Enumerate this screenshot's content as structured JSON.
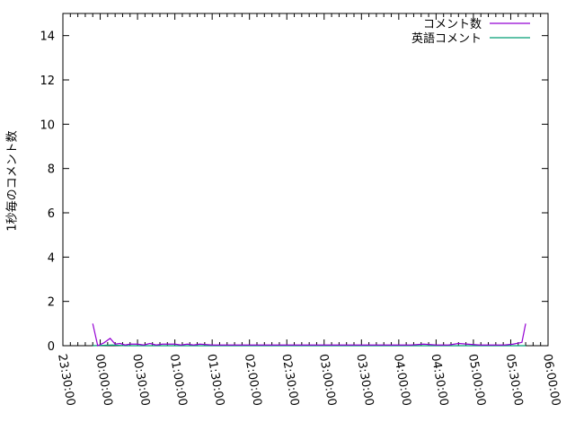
{
  "chart_data": {
    "type": "line",
    "title": "",
    "xlabel": "",
    "ylabel": "1秒毎のコメント数",
    "xlim": [
      "23:30:00",
      "06:00:00"
    ],
    "ylim": [
      0,
      15
    ],
    "x_ticks": [
      "23:30:00",
      "00:00:00",
      "00:30:00",
      "01:00:00",
      "01:30:00",
      "02:00:00",
      "02:30:00",
      "03:00:00",
      "03:30:00",
      "04:00:00",
      "04:30:00",
      "05:00:00",
      "05:30:00",
      "06:00:00"
    ],
    "y_ticks": [
      0,
      2,
      4,
      6,
      8,
      10,
      12,
      14
    ],
    "grid": false,
    "legend_position": "top-right",
    "series": [
      {
        "name": "コメント数",
        "color": "#9400d3",
        "points": [
          [
            "23:54",
            1.0
          ],
          [
            "23:58",
            0
          ],
          [
            "00:03",
            0.13
          ],
          [
            "00:08",
            0.33
          ],
          [
            "00:12",
            0.07
          ],
          [
            "00:16",
            0.1
          ],
          [
            "00:20",
            0.03
          ],
          [
            "00:24",
            0.07
          ],
          [
            "00:30",
            0.07
          ],
          [
            "00:35",
            0.03
          ],
          [
            "00:40",
            0.1
          ],
          [
            "00:45",
            0.03
          ],
          [
            "00:50",
            0.07
          ],
          [
            "00:55",
            0.07
          ],
          [
            "01:00",
            0.07
          ],
          [
            "01:05",
            0.03
          ],
          [
            "01:10",
            0.07
          ],
          [
            "01:15",
            0.03
          ],
          [
            "01:20",
            0.07
          ],
          [
            "01:30",
            0.03
          ],
          [
            "01:40",
            0.03
          ],
          [
            "01:50",
            0.03
          ],
          [
            "02:00",
            0.03
          ],
          [
            "02:10",
            0.03
          ],
          [
            "02:20",
            0.03
          ],
          [
            "02:30",
            0.03
          ],
          [
            "02:40",
            0.03
          ],
          [
            "02:50",
            0.03
          ],
          [
            "03:00",
            0.03
          ],
          [
            "03:10",
            0.03
          ],
          [
            "03:20",
            0.03
          ],
          [
            "03:30",
            0.03
          ],
          [
            "03:40",
            0.03
          ],
          [
            "03:50",
            0.03
          ],
          [
            "04:00",
            0.03
          ],
          [
            "04:10",
            0.03
          ],
          [
            "04:20",
            0.07
          ],
          [
            "04:30",
            0.03
          ],
          [
            "04:40",
            0.03
          ],
          [
            "04:48",
            0.1
          ],
          [
            "04:55",
            0.07
          ],
          [
            "05:05",
            0.03
          ],
          [
            "05:15",
            0.03
          ],
          [
            "05:25",
            0.03
          ],
          [
            "05:32",
            0.07
          ],
          [
            "05:39",
            0.15
          ],
          [
            "05:42",
            1.0
          ]
        ]
      },
      {
        "name": "英語コメント",
        "color": "#009e73",
        "points": [
          [
            "23:54",
            0
          ],
          [
            "00:10",
            0.03
          ],
          [
            "00:20",
            0
          ],
          [
            "01:00",
            0
          ],
          [
            "02:00",
            0
          ],
          [
            "03:00",
            0
          ],
          [
            "04:00",
            0
          ],
          [
            "05:00",
            0
          ],
          [
            "05:42",
            0
          ]
        ]
      }
    ]
  }
}
